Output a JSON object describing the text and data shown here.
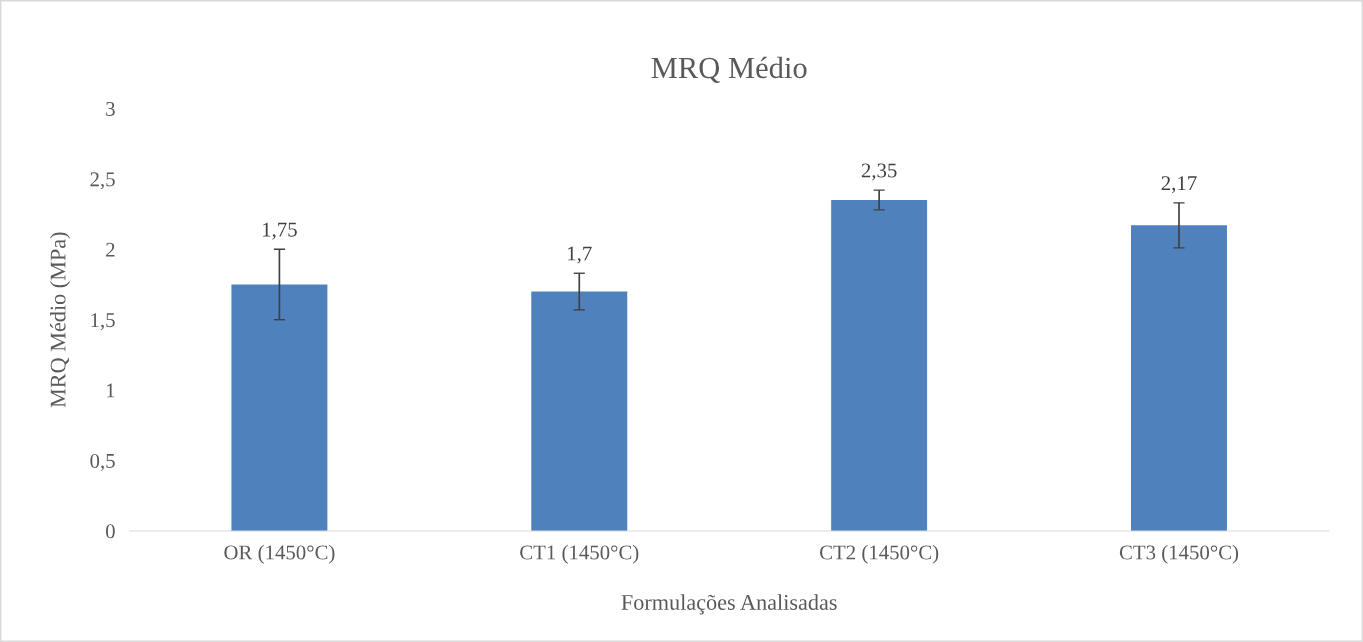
{
  "chart_data": {
    "type": "bar",
    "title": "MRQ Médio",
    "xlabel": "Formulações Analisadas",
    "ylabel": "MRQ Médio (MPa)",
    "categories": [
      "OR (1450°C)",
      "CT1 (1450°C)",
      "CT2 (1450°C)",
      "CT3 (1450°C)"
    ],
    "values": [
      1.75,
      1.7,
      2.35,
      2.17
    ],
    "errors": [
      0.25,
      0.13,
      0.07,
      0.16
    ],
    "value_labels": [
      "1,75",
      "1,7",
      "2,35",
      "2,17"
    ],
    "color": "#4f81bd",
    "ylim": [
      0,
      3
    ],
    "yticks": [
      0,
      {
        "value": 0.5,
        "label": "0,5"
      },
      1,
      {
        "value": 1.5,
        "label": "1,5"
      },
      2,
      {
        "value": 2.5,
        "label": "2,5"
      },
      3
    ],
    "grid": false,
    "legend": false
  }
}
